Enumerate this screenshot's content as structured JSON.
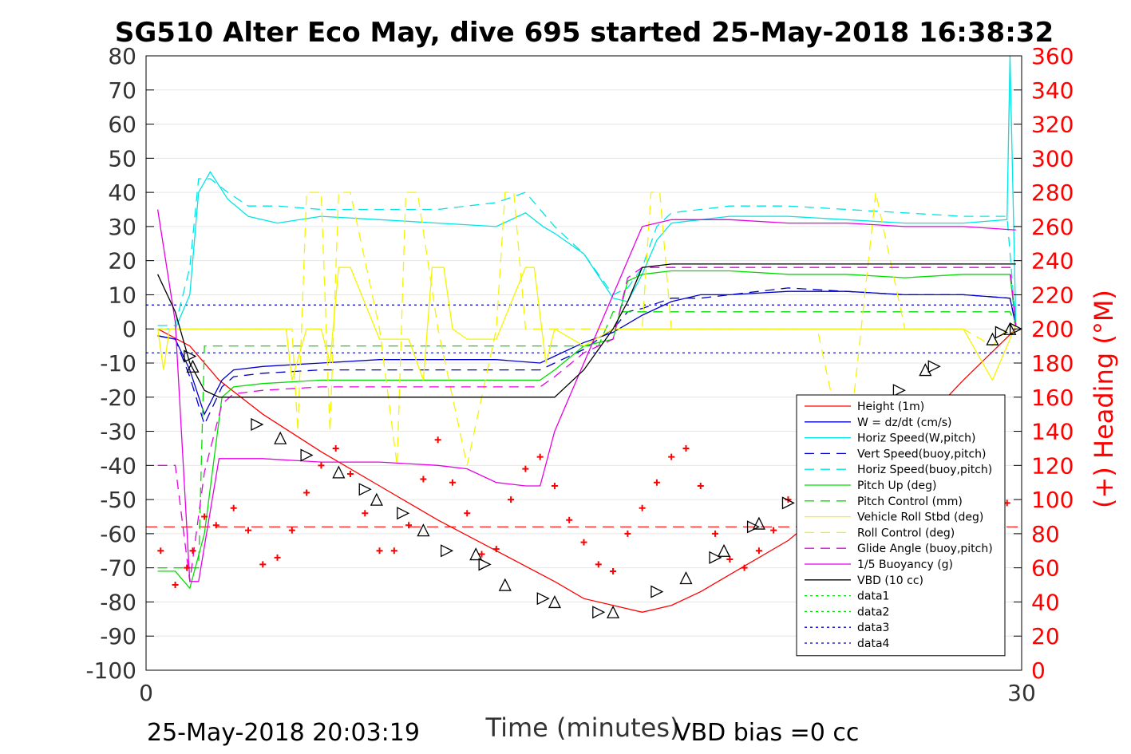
{
  "chart_data": {
    "type": "line",
    "title": "SG510 Alter Eco May, dive 695 started 25-May-2018 16:38:32",
    "xlabel": "Time (minutes)",
    "ylabel": "",
    "y2label": "(+) Heading (°M)",
    "xlim": [
      0,
      30
    ],
    "ylim": [
      -100,
      80
    ],
    "y2lim": [
      0,
      360
    ],
    "x_ticks": [
      "0",
      "30"
    ],
    "y_ticks": [
      "80",
      "70",
      "60",
      "50",
      "40",
      "30",
      "20",
      "10",
      "0",
      "-10",
      "-20",
      "-30",
      "-40",
      "-50",
      "-60",
      "-70",
      "-80",
      "-90",
      "-100"
    ],
    "y2_ticks": [
      "360",
      "340",
      "320",
      "300",
      "280",
      "260",
      "240",
      "220",
      "200",
      "180",
      "160",
      "140",
      "120",
      "100",
      "80",
      "60",
      "40",
      "20",
      "0"
    ],
    "grid": true,
    "legend_position": "lower-right",
    "footer_left": "25-May-2018 20:03:19",
    "footer_right": "VBD bias =0 cc",
    "colors": {
      "red": "#ff0000",
      "blue": "#0000cc",
      "cyan": "#00e5e5",
      "green": "#00dd00",
      "yellow": "#f5f500",
      "magenta": "#e600e6",
      "black": "#000000",
      "heading_axis": "#ff0000"
    },
    "series": [
      {
        "name": "Height (1m)",
        "color": "#ff0000",
        "dash": "",
        "x": [
          0.4,
          1.5,
          2.5,
          4,
          6,
          8,
          10,
          12,
          14,
          15,
          16,
          17,
          18,
          19,
          20,
          22,
          24,
          26,
          28,
          29.8
        ],
        "y": [
          0,
          -5,
          -15,
          -25,
          -36,
          -46,
          -56,
          -65,
          -74,
          -79,
          -81,
          -83,
          -81,
          -77,
          -72,
          -62,
          -48,
          -33,
          -15,
          0
        ]
      },
      {
        "name": "W = dz/dt (cm/s)",
        "color": "#0000cc",
        "dash": "",
        "x": [
          0.4,
          1.0,
          1.5,
          2.0,
          2.6,
          3,
          4,
          6,
          8,
          10,
          12,
          13.5,
          14,
          15,
          16,
          17,
          18,
          19,
          20,
          22,
          24,
          26,
          28,
          29.6,
          29.8
        ],
        "y": [
          -2,
          -3,
          -12,
          -25,
          -15,
          -12,
          -11,
          -10,
          -9,
          -9,
          -9,
          -10,
          -8,
          -4,
          -1,
          4,
          8,
          10,
          10,
          11,
          11,
          10,
          10,
          9,
          1
        ]
      },
      {
        "name": "Horiz Speed(W,pitch)",
        "color": "#00e5e5",
        "dash": "",
        "x": [
          0.4,
          1.0,
          1.5,
          1.8,
          2.2,
          2.8,
          3.5,
          4.5,
          6,
          8,
          10,
          12,
          13,
          13.6,
          14,
          15,
          16,
          16.5,
          17,
          17.5,
          18,
          19,
          20,
          22,
          24,
          26,
          28,
          29.5,
          29.6,
          29.8
        ],
        "y": [
          0,
          0,
          10,
          40,
          46,
          38,
          33,
          31,
          33,
          32,
          31,
          30,
          34,
          30,
          28,
          22,
          9,
          8,
          16,
          26,
          31,
          32,
          33,
          33,
          32,
          31,
          31,
          32,
          80,
          1
        ]
      },
      {
        "name": "Vert Speed(buoy,pitch)",
        "color": "#0000cc",
        "dash": "12,8",
        "x": [
          0.4,
          1.0,
          1.5,
          2.0,
          2.6,
          3,
          4,
          6,
          8,
          10,
          12,
          13.5,
          14,
          15,
          16,
          16.5,
          17,
          18,
          19,
          20,
          22,
          24,
          26,
          28,
          29.6,
          29.8
        ],
        "y": [
          -2,
          -3,
          -14,
          -28,
          -17,
          -14,
          -13,
          -12,
          -12,
          -12,
          -12,
          -12,
          -10,
          -6,
          0,
          5,
          6,
          9,
          9,
          10,
          12,
          11,
          10,
          10,
          9,
          1
        ]
      },
      {
        "name": "Horiz Speed(buoy,pitch)",
        "color": "#00e5e5",
        "dash": "12,8",
        "x": [
          0.4,
          1.0,
          1.5,
          1.8,
          2.2,
          2.8,
          3.5,
          4.5,
          6,
          8,
          10,
          12,
          13,
          13.6,
          14,
          15,
          16,
          16.5,
          17,
          17.5,
          18,
          19,
          20,
          22,
          24,
          26,
          28,
          29.5,
          29.8
        ],
        "y": [
          1,
          1,
          18,
          44,
          44,
          40,
          36,
          36,
          35,
          35,
          35,
          37,
          40,
          34,
          30,
          22,
          10,
          12,
          18,
          30,
          34,
          35,
          36,
          36,
          35,
          34,
          33,
          33,
          1
        ]
      },
      {
        "name": "Pitch Up (deg)",
        "color": "#00dd00",
        "dash": "",
        "x": [
          0.4,
          1.0,
          1.5,
          2.0,
          2.6,
          3,
          4,
          6,
          8,
          10,
          12,
          13.5,
          14,
          15,
          16,
          16.5,
          17,
          18,
          19,
          20,
          22,
          24,
          26,
          28,
          29.6,
          29.8
        ],
        "y": [
          -71,
          -71,
          -76,
          -60,
          -20,
          -17,
          -16,
          -15,
          -15,
          -15,
          -15,
          -15,
          -12,
          -5,
          -3,
          14,
          16,
          17,
          17,
          17,
          16,
          16,
          15,
          16,
          16,
          1
        ]
      },
      {
        "name": "Pitch Control (mm)",
        "color": "#00dd00",
        "dash": "12,8",
        "x": [
          0.4,
          1.0,
          1.5,
          1.8,
          2.0,
          2.6,
          3,
          4,
          6,
          8,
          10,
          12,
          13.5,
          14,
          15,
          15.5,
          16,
          16.5,
          17,
          18,
          20,
          22,
          24,
          26,
          28,
          29.6,
          29.8
        ],
        "y": [
          -70,
          -70,
          -70,
          -70,
          -5,
          -5,
          -5,
          -5,
          -5,
          -5,
          -5,
          -5,
          -5,
          -5,
          -5,
          -5,
          5,
          5,
          5,
          5,
          5,
          5,
          5,
          5,
          5,
          5,
          1
        ]
      },
      {
        "name": "Vehicle Roll Stbd (deg)",
        "color": "#f5f500",
        "dash": "",
        "x": [
          0.4,
          0.6,
          0.8,
          1.0,
          1.5,
          2,
          3,
          4,
          4.8,
          5,
          5.5,
          6,
          6.3,
          6.6,
          7,
          8,
          9,
          9.5,
          9.8,
          10.2,
          10.5,
          11,
          11.5,
          12,
          13,
          13.3,
          13.7,
          14,
          15,
          16,
          17,
          18,
          19,
          20,
          21,
          22,
          23,
          24,
          25,
          26,
          27,
          28,
          29,
          29.5,
          29.8
        ],
        "y": [
          0,
          -12,
          0,
          0,
          0,
          0,
          0,
          0,
          0,
          -15,
          0,
          0,
          -10,
          18,
          18,
          -3,
          -3,
          -15,
          18,
          18,
          0,
          -3,
          -3,
          -3,
          18,
          18,
          -10,
          0,
          -5,
          0,
          0,
          0,
          0,
          0,
          0,
          0,
          0,
          0,
          0,
          0,
          0,
          0,
          -15,
          -5,
          1
        ]
      },
      {
        "name": "Roll Control (deg)",
        "color": "#f5f500",
        "dash": "12,8",
        "x": [
          0.4,
          3,
          4,
          5,
          5.2,
          5.5,
          6,
          6.3,
          6.6,
          7,
          8,
          8.6,
          8.9,
          9.3,
          10,
          11,
          12,
          12.3,
          12.6,
          13,
          14,
          15,
          16,
          17,
          17.3,
          17.6,
          18,
          19,
          20,
          21,
          22,
          23,
          24,
          25,
          26,
          27,
          28,
          29,
          29.5,
          29.8
        ],
        "y": [
          0,
          0,
          0,
          0,
          -30,
          40,
          40,
          -30,
          40,
          40,
          0,
          -40,
          40,
          40,
          0,
          -40,
          0,
          40,
          40,
          0,
          0,
          0,
          0,
          0,
          40,
          40,
          0,
          0,
          0,
          0,
          0,
          0,
          -40,
          40,
          0,
          0,
          0,
          -5,
          0,
          1
        ]
      },
      {
        "name": "Glide Angle (buoy,pitch)",
        "color": "#e600e6",
        "dash": "12,8",
        "x": [
          0.4,
          1.0,
          1.5,
          2.0,
          2.6,
          3,
          4,
          6,
          8,
          10,
          12,
          13.5,
          14,
          15,
          16,
          16.5,
          17,
          18,
          19,
          20,
          22,
          24,
          26,
          28,
          29.6,
          29.8
        ],
        "y": [
          -40,
          -40,
          -74,
          -42,
          -22,
          -19,
          -18,
          -17,
          -17,
          -17,
          -17,
          -17,
          -14,
          -7,
          -3,
          15,
          18,
          18,
          18,
          18,
          18,
          18,
          18,
          18,
          18,
          1
        ]
      },
      {
        "name": "1/5 Buoyancy (g)",
        "color": "#e600e6",
        "dash": "",
        "x": [
          0.4,
          1.0,
          1.5,
          1.8,
          2.5,
          3,
          4,
          6,
          8,
          10,
          11,
          12,
          13,
          13.5,
          14,
          15,
          16,
          17,
          18,
          20,
          22,
          24,
          26,
          28,
          29.8
        ],
        "y": [
          35,
          2,
          -74,
          -74,
          -38,
          -38,
          -38,
          -39,
          -39,
          -40,
          -41,
          -45,
          -46,
          -46,
          -30,
          -10,
          10,
          30,
          32,
          32,
          31,
          31,
          30,
          30,
          29
        ]
      },
      {
        "name": "VBD (10 cc)",
        "color": "#000000",
        "dash": "",
        "x": [
          0.4,
          1.0,
          1.5,
          2.0,
          2.5,
          4,
          6,
          8,
          10,
          12,
          13.5,
          14,
          15,
          16,
          16.5,
          17,
          18,
          20,
          22,
          24,
          26,
          28,
          29.8
        ],
        "y": [
          16,
          5,
          -10,
          -18,
          -20,
          -20,
          -20,
          -20,
          -20,
          -20,
          -20,
          -20,
          -12,
          0,
          8,
          18,
          19,
          19,
          19,
          19,
          19,
          19,
          19
        ]
      },
      {
        "name": "data1",
        "color": "#00dd00",
        "dash": "3,4",
        "x": [],
        "y": []
      },
      {
        "name": "data2",
        "color": "#00dd00",
        "dash": "3,4",
        "x": [],
        "y": []
      },
      {
        "name": "data3",
        "color": "#0000cc",
        "dash": "3,4",
        "x": [],
        "y": []
      },
      {
        "name": "data4",
        "color": "#0000cc",
        "dash": "3,4",
        "x": [],
        "y": []
      }
    ],
    "reference_lines": [
      {
        "color": "#0000cc",
        "dash": "3,4",
        "y": 7,
        "axis": "left"
      },
      {
        "color": "#0000cc",
        "dash": "3,4",
        "y": -7,
        "axis": "left"
      },
      {
        "color": "#ff0000",
        "dash": "14,8",
        "y": 84,
        "axis": "right"
      }
    ],
    "heading": {
      "color": "#ff0000",
      "axis": "right",
      "x": [
        0.5,
        1.0,
        1.4,
        1.6,
        2.0,
        2.4,
        3.0,
        3.5,
        4.0,
        4.5,
        5.0,
        5.5,
        6.0,
        6.5,
        7.0,
        7.5,
        8.0,
        8.5,
        9.0,
        9.5,
        10.0,
        10.5,
        11.0,
        11.5,
        12.0,
        12.5,
        13.0,
        13.5,
        14.0,
        14.5,
        15.0,
        15.5,
        16.0,
        16.5,
        17.0,
        17.5,
        18.0,
        18.5,
        19.0,
        19.5,
        20.0,
        20.5,
        21.0,
        21.5,
        22.0,
        22.5,
        23.0,
        23.5,
        24.0,
        24.5,
        25.0,
        25.5,
        26.0,
        26.5,
        27.0,
        27.5,
        28.0,
        28.5,
        29.0,
        29.5
      ],
      "y": [
        70,
        50,
        60,
        70,
        90,
        85,
        95,
        82,
        62,
        66,
        82,
        104,
        120,
        130,
        115,
        92,
        70,
        70,
        85,
        112,
        135,
        110,
        92,
        68,
        71,
        100,
        118,
        125,
        108,
        88,
        75,
        62,
        58,
        80,
        95,
        110,
        125,
        130,
        108,
        80,
        65,
        60,
        70,
        82,
        100,
        110,
        118,
        112,
        96,
        78,
        58,
        52,
        62,
        75,
        92,
        110,
        130,
        140,
        122,
        98
      ]
    },
    "markers": {
      "color": "#000000",
      "shape": "triangle",
      "x": [
        1.5,
        1.6,
        3.8,
        4.6,
        5.5,
        6.6,
        7.5,
        7.9,
        8.8,
        9.5,
        10.3,
        11.3,
        11.6,
        12.3,
        13.6,
        14.0,
        15.5,
        16.0,
        17.5,
        18.5,
        19.5,
        19.8,
        20.8,
        21.0,
        22.0,
        22.6,
        23.2,
        23.4,
        25.8,
        26.7,
        27.0,
        29.0,
        29.3,
        29.6,
        29.8
      ],
      "y": [
        -8,
        -11,
        -28,
        -32,
        -37,
        -42,
        -47,
        -50,
        -54,
        -59,
        -65,
        -66,
        -69,
        -75,
        -79,
        -80,
        -83,
        -83,
        -77,
        -73,
        -67,
        -65,
        -58,
        -57,
        -51,
        -43,
        -42,
        -41,
        -18,
        -12,
        -11,
        -3,
        -1,
        0,
        0
      ]
    }
  }
}
